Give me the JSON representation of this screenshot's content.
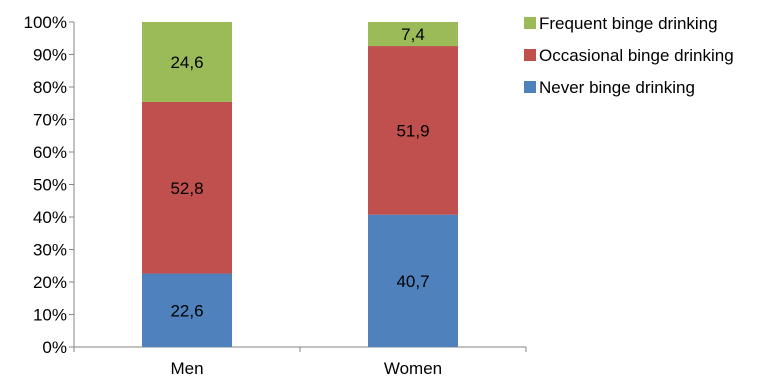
{
  "chart_data": {
    "type": "bar",
    "stacked": true,
    "categories": [
      "Men",
      "Women"
    ],
    "series": [
      {
        "name": "Never binge drinking",
        "values": [
          22.6,
          40.7
        ],
        "labels": [
          "22,6",
          "40,7"
        ],
        "color": "#4F81BD"
      },
      {
        "name": "Occasional binge drinking",
        "values": [
          52.8,
          51.9
        ],
        "labels": [
          "52,8",
          "51,9"
        ],
        "color": "#C0504D"
      },
      {
        "name": "Frequent binge drinking",
        "values": [
          24.6,
          7.4
        ],
        "labels": [
          "24,6",
          "7,4"
        ],
        "color": "#9BBB59"
      }
    ],
    "yticks": [
      "0%",
      "10%",
      "20%",
      "30%",
      "40%",
      "50%",
      "60%",
      "70%",
      "80%",
      "90%",
      "100%"
    ],
    "ylim": [
      0,
      100
    ],
    "grid": false,
    "legend_position": "top-right",
    "legend_order": [
      "Frequent binge drinking",
      "Occasional binge drinking",
      "Never binge drinking"
    ]
  }
}
